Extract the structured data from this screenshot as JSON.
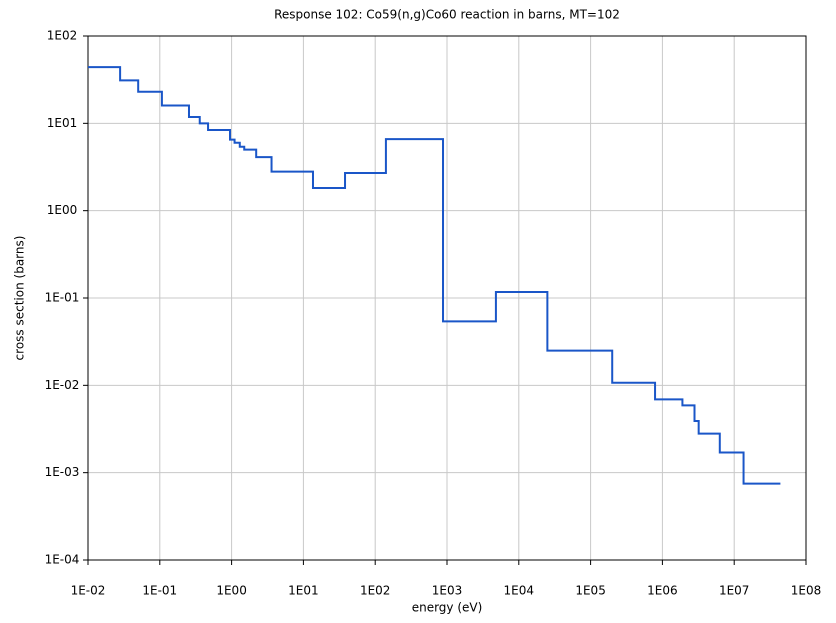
{
  "chart_data": {
    "type": "line",
    "step": "post",
    "title": "Response 102: Co59(n,g)Co60 reaction in barns, MT=102",
    "x_label": "energy (eV)",
    "y_label": "cross section (barns)",
    "log_x": true,
    "log_y": true,
    "grid": true,
    "xlim": [
      0.01,
      100000000
    ],
    "ylim": [
      0.0001,
      100
    ],
    "xticks": [
      {
        "value": 0.01,
        "label": "1E-02"
      },
      {
        "value": 0.1,
        "label": "1E-01"
      },
      {
        "value": 1,
        "label": "1E00"
      },
      {
        "value": 10,
        "label": "1E01"
      },
      {
        "value": 100,
        "label": "1E02"
      },
      {
        "value": 1000,
        "label": "1E03"
      },
      {
        "value": 10000,
        "label": "1E04"
      },
      {
        "value": 100000,
        "label": "1E05"
      },
      {
        "value": 1000000,
        "label": "1E06"
      },
      {
        "value": 10000000,
        "label": "1E07"
      },
      {
        "value": 100000000,
        "label": "1E08"
      }
    ],
    "yticks": [
      {
        "value": 0.0001,
        "label": "1E-04"
      },
      {
        "value": 0.001,
        "label": "1E-03"
      },
      {
        "value": 0.01,
        "label": "1E-02"
      },
      {
        "value": 0.1,
        "label": "1E-01"
      },
      {
        "value": 1,
        "label": "1E00"
      },
      {
        "value": 10,
        "label": "1E01"
      },
      {
        "value": 100,
        "label": "1E02"
      }
    ],
    "x": [
      0.01,
      0.028,
      0.05,
      0.107,
      0.255,
      0.36,
      0.47,
      0.95,
      1.1,
      1.3,
      1.5,
      2.2,
      3.6,
      13.6,
      38,
      141,
      880,
      4800,
      25000,
      200000,
      790000,
      1900000,
      2800000,
      3200000,
      6300000,
      13500000,
      44000000
    ],
    "series": [
      {
        "color": "#1a56c8",
        "values": [
          44,
          31,
          23,
          16,
          11.8,
          10,
          8.4,
          6.5,
          6,
          5.4,
          5,
          4.1,
          2.8,
          1.82,
          2.7,
          6.6,
          0.054,
          0.117,
          0.025,
          0.0107,
          0.0069,
          0.0059,
          0.0039,
          0.0028,
          0.0017,
          0.00075,
          0.00075
        ]
      }
    ]
  }
}
